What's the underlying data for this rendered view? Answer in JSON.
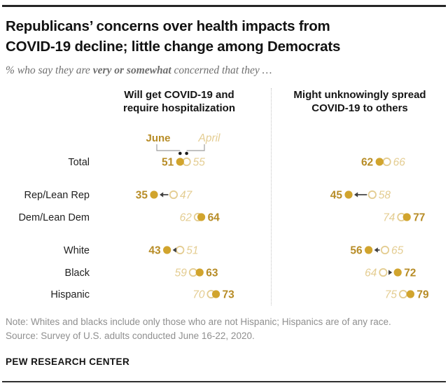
{
  "header": {
    "title_line1": "Republicans’ concerns over health impacts from",
    "title_line2": "COVID-19 decline; little change among Democrats",
    "subtitle_prefix": "% who say they are ",
    "subtitle_bold": "very or somewhat",
    "subtitle_suffix": " concerned that they …"
  },
  "chart_data": {
    "type": "dumbbell-dot-plot",
    "legend": {
      "june_label": "June",
      "april_label": "April"
    },
    "columns": [
      {
        "header_line1": "Will get COVID-19 and",
        "header_line2": "require hospitalization"
      },
      {
        "header_line1": "Might unknowingly spread",
        "header_line2": "COVID-19 to others"
      }
    ],
    "categories": [
      "Total",
      "Rep/Lean Rep",
      "Dem/Lean Dem",
      "White",
      "Black",
      "Hispanic"
    ],
    "series": [
      {
        "name": "Will get COVID-19 and require hospitalization",
        "june": [
          51,
          35,
          64,
          43,
          63,
          73
        ],
        "april": [
          55,
          47,
          62,
          51,
          59,
          70
        ]
      },
      {
        "name": "Might unknowingly spread COVID-19 to others",
        "june": [
          62,
          45,
          77,
          56,
          72,
          79
        ],
        "april": [
          66,
          58,
          74,
          65,
          64,
          75
        ]
      }
    ],
    "value_range": [
      35,
      79
    ],
    "colors": {
      "june_text": "#b78c26",
      "june_dot": "#d1a42d",
      "april": "#e4cd92",
      "arrow": "#404040",
      "connector": "#9e9e9e",
      "marker": "#1a1a1a"
    }
  },
  "footer": {
    "note": "Note: Whites and blacks include only those who are not Hispanic; Hispanics are of any race.",
    "source": "Source: Survey of U.S. adults conducted June 16-22, 2020.",
    "brand": "PEW RESEARCH CENTER"
  }
}
